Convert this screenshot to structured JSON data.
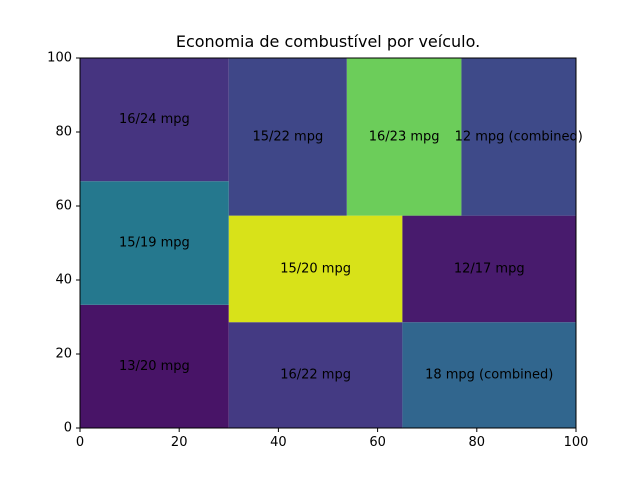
{
  "chart_data": {
    "type": "treemap",
    "title": "Economia de combustível por veículo.",
    "xlim": [
      0,
      100
    ],
    "ylim": [
      0,
      100
    ],
    "xticks": [
      0,
      20,
      40,
      60,
      80,
      100
    ],
    "yticks": [
      0,
      20,
      40,
      60,
      80,
      100
    ],
    "grid": false,
    "cells": [
      {
        "label": "13/20 mpg",
        "x0": 0,
        "x1": 30,
        "y0": 0,
        "y1": 33.3,
        "color": "#481467"
      },
      {
        "label": "15/19 mpg",
        "x0": 0,
        "x1": 30,
        "y0": 33.3,
        "y1": 66.7,
        "color": "#25788e"
      },
      {
        "label": "16/24 mpg",
        "x0": 0,
        "x1": 30,
        "y0": 66.7,
        "y1": 100,
        "color": "#463480"
      },
      {
        "label": "16/22 mpg",
        "x0": 30,
        "x1": 65,
        "y0": 0,
        "y1": 28.6,
        "color": "#443a83"
      },
      {
        "label": "15/20 mpg",
        "x0": 30,
        "x1": 65,
        "y0": 28.6,
        "y1": 57.4,
        "color": "#d8e219"
      },
      {
        "label": "18 mpg (combined)",
        "x0": 65,
        "x1": 100,
        "y0": 0,
        "y1": 28.6,
        "color": "#31668e"
      },
      {
        "label": "12/17 mpg",
        "x0": 65,
        "x1": 100,
        "y0": 28.6,
        "y1": 57.4,
        "color": "#481b6d"
      },
      {
        "label": "15/22 mpg",
        "x0": 30,
        "x1": 53.8,
        "y0": 57.4,
        "y1": 100,
        "color": "#3f4788"
      },
      {
        "label": "16/23 mpg",
        "x0": 53.8,
        "x1": 76.9,
        "y0": 57.4,
        "y1": 100,
        "color": "#6ccd5a"
      },
      {
        "label": "12 mpg (combined)",
        "x0": 76.9,
        "x1": 100,
        "y0": 57.4,
        "y1": 100,
        "color": "#3e4a89"
      }
    ]
  }
}
